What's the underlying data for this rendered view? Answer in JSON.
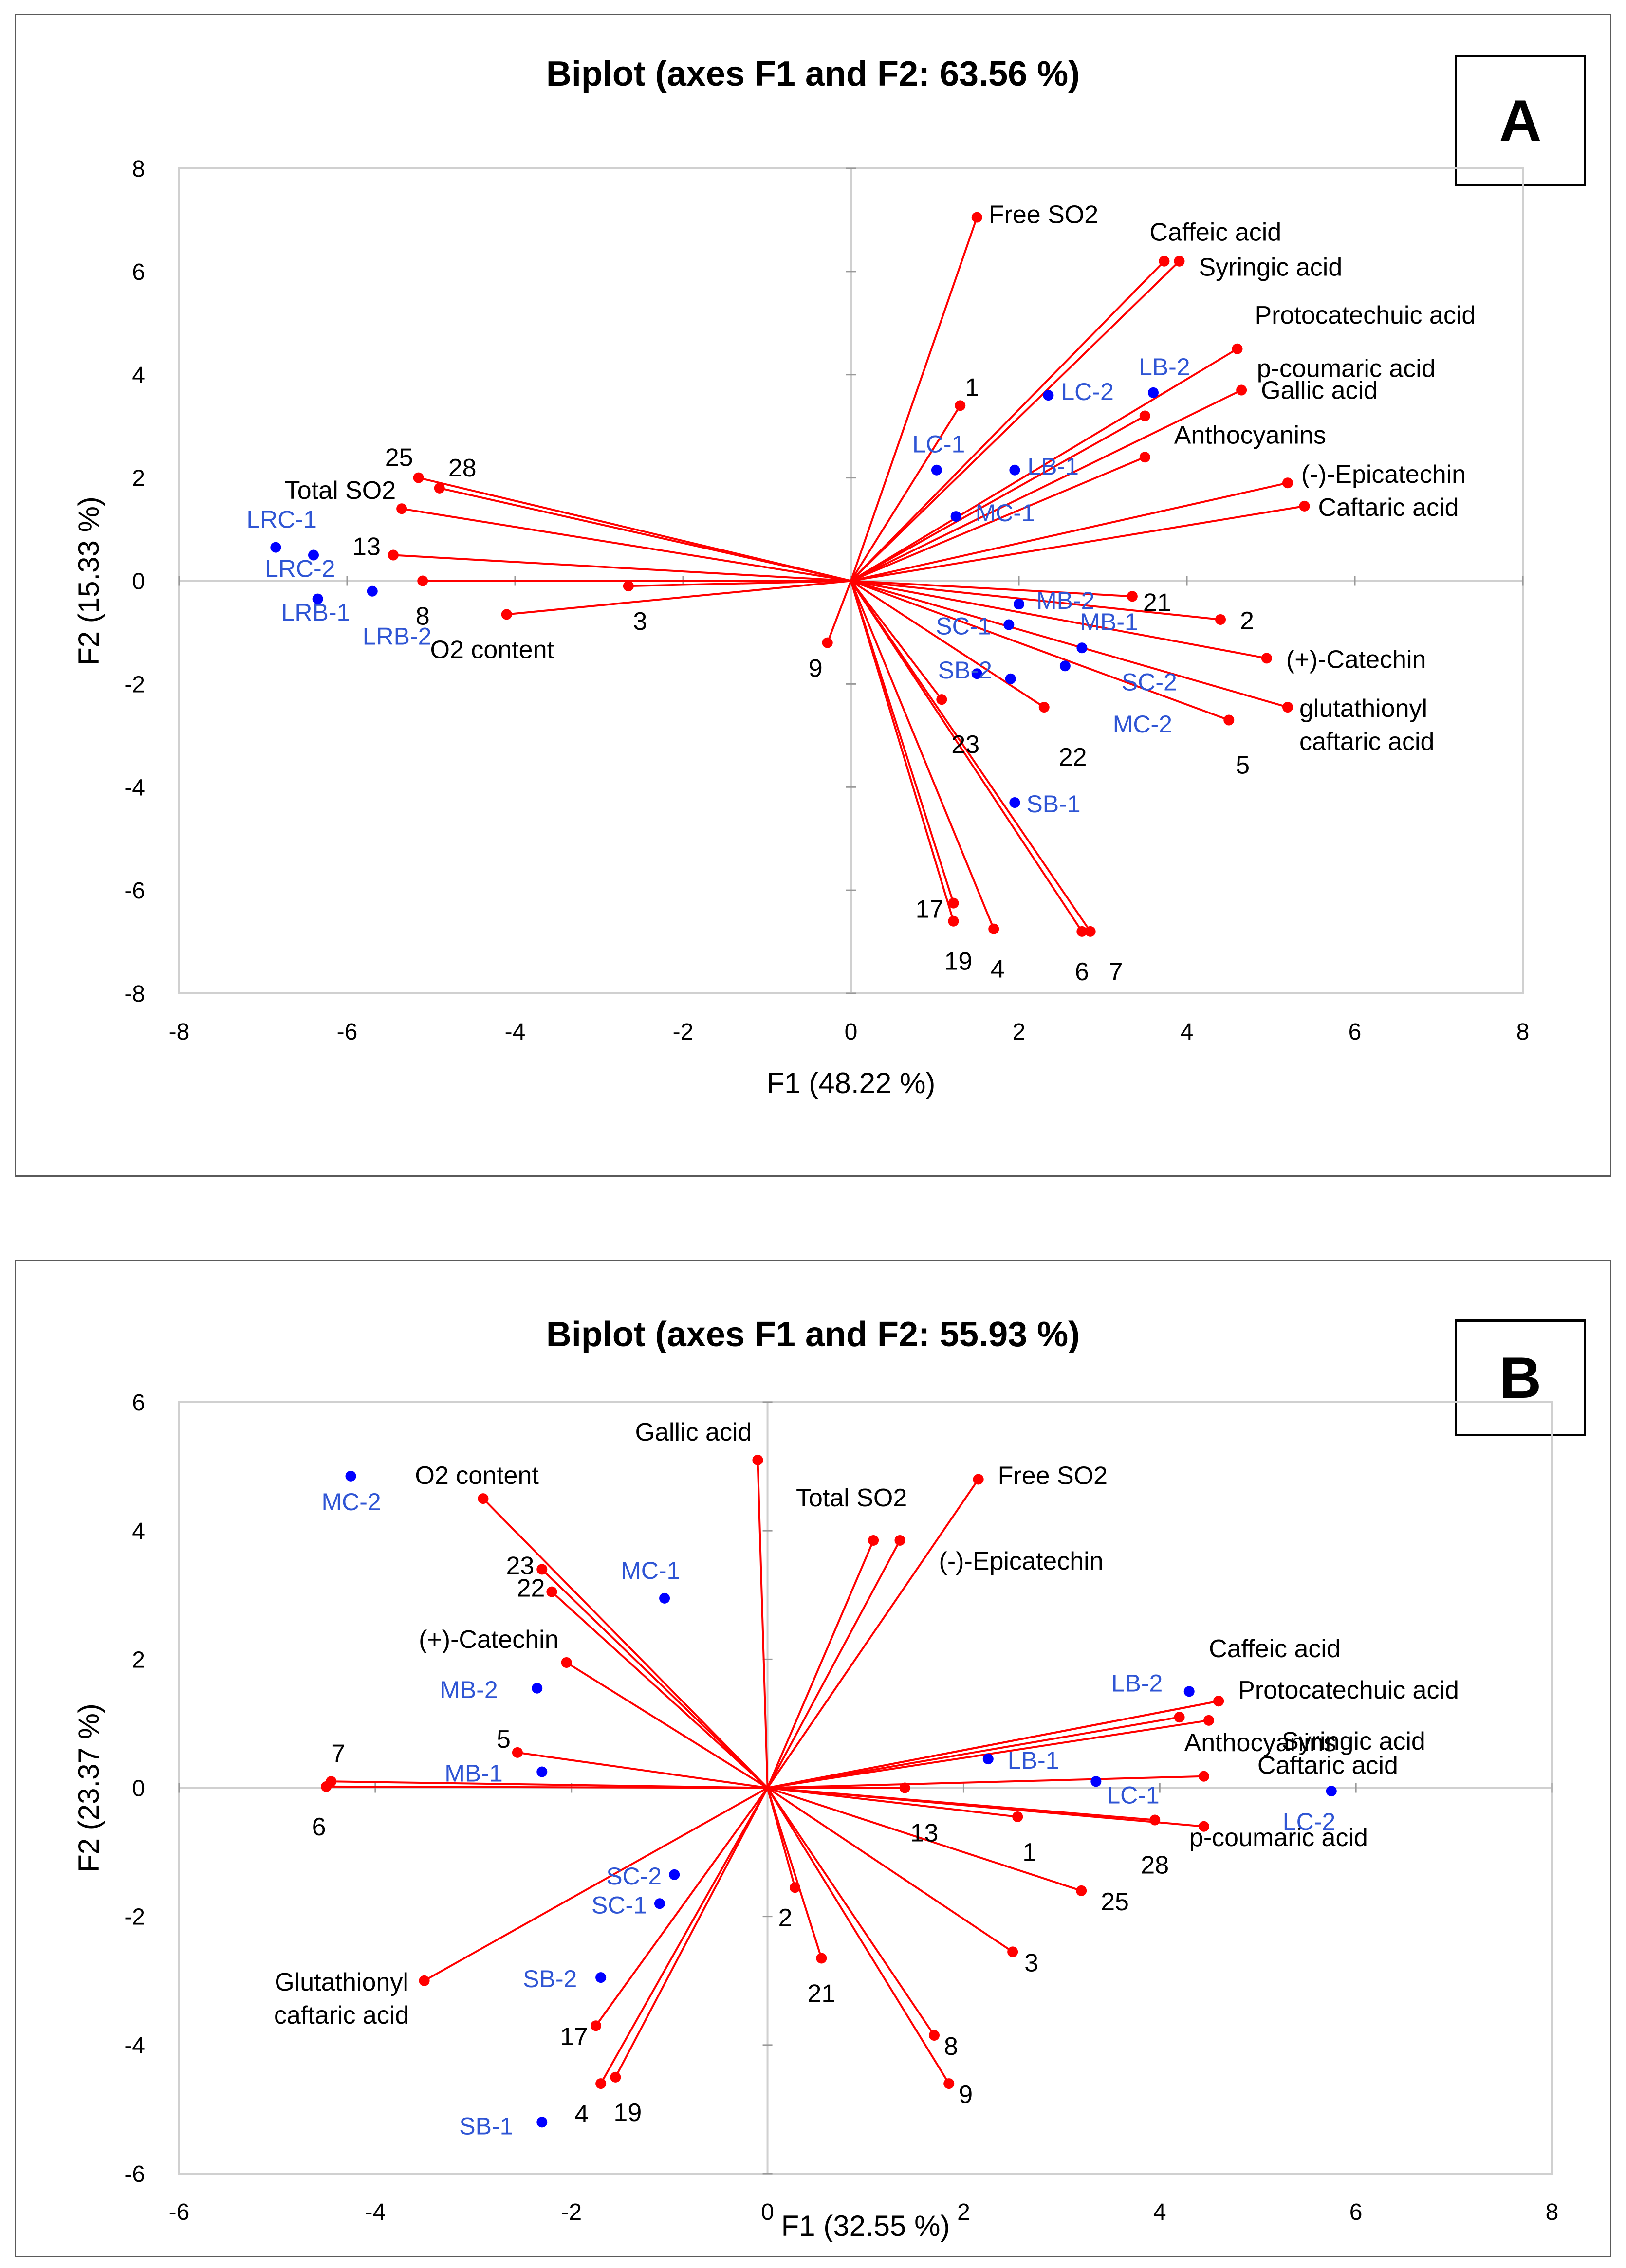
{
  "colors": {
    "variable": "#ff0000",
    "observation": "#0000ff",
    "axis": "#d0d0d0",
    "text": "#000000",
    "obs_text": "#2f55d4"
  },
  "chart_data": [
    {
      "type": "scatter",
      "panel_letter": "A",
      "title": "Biplot (axes F1 and F2: 63.56 %)",
      "xlabel": "F1 (48.22 %)",
      "ylabel": "F2 (15.33 %)",
      "xlim": [
        -8,
        8
      ],
      "ylim": [
        -8,
        8
      ],
      "xticks": [
        "-8",
        "-6",
        "-4",
        "-2",
        "0",
        "2",
        "4",
        "6",
        "8"
      ],
      "yticks": [
        "-8",
        "-6",
        "-4",
        "-2",
        "0",
        "2",
        "4",
        "6",
        "8"
      ],
      "variables": [
        {
          "label": "Free SO2",
          "x": 1.5,
          "y": 7.05,
          "anchor": "start"
        },
        {
          "label": "Caffeic acid",
          "x": 3.73,
          "y": 6.2,
          "anchor": "start"
        },
        {
          "label": "Syringic acid",
          "x": 3.91,
          "y": 6.2,
          "anchor": "start"
        },
        {
          "label": "Protocatechuic acid",
          "x": 4.6,
          "y": 4.5,
          "anchor": "start"
        },
        {
          "label": "p-coumaric acid",
          "x": 3.5,
          "y": 3.2,
          "anchor": "start"
        },
        {
          "label": "Gallic acid",
          "x": 4.65,
          "y": 3.7,
          "anchor": "start"
        },
        {
          "label": "Anthocyanins",
          "x": 3.5,
          "y": 2.4,
          "anchor": "start"
        },
        {
          "label": "(-)-Epicatechin",
          "x": 5.2,
          "y": 1.9,
          "anchor": "start"
        },
        {
          "label": "Caftaric acid",
          "x": 5.4,
          "y": 1.45,
          "anchor": "start"
        },
        {
          "label": "1",
          "x": 1.3,
          "y": 3.4,
          "anchor": "start"
        },
        {
          "label": "25",
          "x": -5.15,
          "y": 2.0,
          "anchor": "middle"
        },
        {
          "label": "28",
          "x": -4.9,
          "y": 1.8,
          "anchor": "start"
        },
        {
          "label": "Total SO2",
          "x": -5.35,
          "y": 1.4,
          "anchor": "end"
        },
        {
          "label": "13",
          "x": -5.45,
          "y": 0.5,
          "anchor": "end"
        },
        {
          "label": "8",
          "x": -5.1,
          "y": 0.0,
          "anchor": "middle"
        },
        {
          "label": "O2 content",
          "x": -4.1,
          "y": -0.65,
          "anchor": "middle"
        },
        {
          "label": "3",
          "x": -2.65,
          "y": -0.1,
          "anchor": "middle"
        },
        {
          "label": "9",
          "x": -0.28,
          "y": -1.2,
          "anchor": "end"
        },
        {
          "label": "21",
          "x": 3.35,
          "y": -0.3,
          "anchor": "start"
        },
        {
          "label": "2",
          "x": 4.4,
          "y": -0.75,
          "anchor": "start"
        },
        {
          "label": "(+)-Catechin",
          "x": 4.95,
          "y": -1.5,
          "anchor": "start"
        },
        {
          "label": "glutathionyl caftaric acid",
          "x": 5.2,
          "y": -2.45,
          "anchor": "start"
        },
        {
          "label": "5",
          "x": 4.5,
          "y": -2.7,
          "anchor": "start"
        },
        {
          "label": "22",
          "x": 2.3,
          "y": -2.45,
          "anchor": "start"
        },
        {
          "label": "23",
          "x": 1.08,
          "y": -2.3,
          "anchor": "start"
        },
        {
          "label": "17",
          "x": 1.22,
          "y": -6.25,
          "anchor": "end"
        },
        {
          "label": "19",
          "x": 1.22,
          "y": -6.6,
          "anchor": "middle"
        },
        {
          "label": "4",
          "x": 1.7,
          "y": -6.75,
          "anchor": "middle"
        },
        {
          "label": "6",
          "x": 2.75,
          "y": -6.8,
          "anchor": "middle"
        },
        {
          "label": "7",
          "x": 2.85,
          "y": -6.8,
          "anchor": "start"
        }
      ],
      "observations": [
        {
          "label": "LRC-1",
          "x": -6.85,
          "y": 0.65
        },
        {
          "label": "LRC-2",
          "x": -6.4,
          "y": 0.5
        },
        {
          "label": "LRB-1",
          "x": -6.35,
          "y": -0.35
        },
        {
          "label": "LRB-2",
          "x": -5.7,
          "y": -0.2
        },
        {
          "label": "LC-1",
          "x": 1.02,
          "y": 2.15
        },
        {
          "label": "LC-2",
          "x": 2.35,
          "y": 3.6
        },
        {
          "label": "LB-1",
          "x": 1.95,
          "y": 2.15
        },
        {
          "label": "LB-2",
          "x": 3.6,
          "y": 3.65
        },
        {
          "label": "MC-1",
          "x": 1.25,
          "y": 1.25
        },
        {
          "label": "MB-2",
          "x": 2.0,
          "y": -0.45
        },
        {
          "label": "MB-1",
          "x": 2.75,
          "y": -1.3
        },
        {
          "label": "SC-1",
          "x": 1.88,
          "y": -0.85
        },
        {
          "label": "SC-2",
          "x": 2.55,
          "y": -1.65
        },
        {
          "label": "SB-2",
          "x": 1.5,
          "y": -1.8
        },
        {
          "label": "MC-2",
          "x": 1.9,
          "y": -1.9
        },
        {
          "label": "SB-1",
          "x": 1.95,
          "y": -4.3
        }
      ]
    },
    {
      "type": "scatter",
      "panel_letter": "B",
      "title": "Biplot (axes F1 and F2: 55.93 %)",
      "xlabel": "F1 (32.55 %)",
      "ylabel": "F2 (23.37 %)",
      "xlim": [
        -6,
        8
      ],
      "ylim": [
        -6,
        6
      ],
      "xticks": [
        "-6",
        "-4",
        "-2",
        "0",
        "2",
        "4",
        "6",
        "8"
      ],
      "yticks": [
        "-6",
        "-4",
        "-2",
        "0",
        "2",
        "4",
        "6"
      ],
      "variables": [
        {
          "label": "Gallic acid",
          "x": -0.1,
          "y": 5.1,
          "anchor": "end"
        },
        {
          "label": "O2 content",
          "x": -2.9,
          "y": 4.5,
          "anchor": "start"
        },
        {
          "label": "Total SO2",
          "x": 1.08,
          "y": 3.85,
          "anchor": "middle"
        },
        {
          "label": "(-)-Epicatechin",
          "x": 1.35,
          "y": 3.85,
          "anchor": "start"
        },
        {
          "label": "Free SO2",
          "x": 2.15,
          "y": 4.8,
          "anchor": "start"
        },
        {
          "label": "23",
          "x": -2.3,
          "y": 3.4,
          "anchor": "end"
        },
        {
          "label": "22",
          "x": -2.2,
          "y": 3.05,
          "anchor": "end"
        },
        {
          "label": "(+)-Catechin",
          "x": -2.05,
          "y": 1.95,
          "anchor": "end"
        },
        {
          "label": "5",
          "x": -2.55,
          "y": 0.55,
          "anchor": "end"
        },
        {
          "label": "7",
          "x": -4.45,
          "y": 0.1,
          "anchor": "start"
        },
        {
          "label": "6",
          "x": -4.5,
          "y": 0.02,
          "anchor": "middle"
        },
        {
          "label": "Glutathionyl caftaric acid",
          "x": -3.5,
          "y": -3.0,
          "anchor": "middle"
        },
        {
          "label": "17",
          "x": -1.75,
          "y": -3.7,
          "anchor": "end"
        },
        {
          "label": "4",
          "x": -1.7,
          "y": -4.6,
          "anchor": "end"
        },
        {
          "label": "19",
          "x": -1.55,
          "y": -4.5,
          "anchor": "middle"
        },
        {
          "label": "2",
          "x": 0.28,
          "y": -1.55,
          "anchor": "middle"
        },
        {
          "label": "21",
          "x": 0.55,
          "y": -2.65,
          "anchor": "middle"
        },
        {
          "label": "3",
          "x": 2.5,
          "y": -2.55,
          "anchor": "start"
        },
        {
          "label": "8",
          "x": 1.7,
          "y": -3.85,
          "anchor": "start"
        },
        {
          "label": "9",
          "x": 1.85,
          "y": -4.6,
          "anchor": "start"
        },
        {
          "label": "25",
          "x": 3.2,
          "y": -1.6,
          "anchor": "start"
        },
        {
          "label": "13",
          "x": 1.4,
          "y": 0.0,
          "anchor": "middle"
        },
        {
          "label": "1",
          "x": 2.55,
          "y": -0.45,
          "anchor": "start"
        },
        {
          "label": "28",
          "x": 3.95,
          "y": -0.5,
          "anchor": "middle"
        },
        {
          "label": "p-coumaric acid",
          "x": 4.45,
          "y": -0.6,
          "anchor": "start"
        },
        {
          "label": "Caftaric acid",
          "x": 4.45,
          "y": 0.18,
          "anchor": "start"
        },
        {
          "label": "Anthocyanins",
          "x": 4.2,
          "y": 1.1,
          "anchor": "start"
        },
        {
          "label": "Syringic acid",
          "x": 4.5,
          "y": 1.05,
          "anchor": "start"
        },
        {
          "label": "Protocatechuic acid",
          "x": 4.6,
          "y": 1.35,
          "anchor": "start"
        },
        {
          "label": "Caffeic acid",
          "x": 4.6,
          "y": 1.35,
          "anchor": "start"
        }
      ],
      "observations": [
        {
          "label": "MC-2",
          "x": -4.25,
          "y": 4.85
        },
        {
          "label": "MC-1",
          "x": -1.05,
          "y": 2.95
        },
        {
          "label": "MB-2",
          "x": -2.35,
          "y": 1.55
        },
        {
          "label": "MB-1",
          "x": -2.3,
          "y": 0.25
        },
        {
          "label": "SC-2",
          "x": -0.95,
          "y": -1.35
        },
        {
          "label": "SC-1",
          "x": -1.1,
          "y": -1.8
        },
        {
          "label": "SB-2",
          "x": -1.7,
          "y": -2.95
        },
        {
          "label": "SB-1",
          "x": -2.3,
          "y": -5.2
        },
        {
          "label": "LB-2",
          "x": 4.3,
          "y": 1.5
        },
        {
          "label": "LB-1",
          "x": 2.25,
          "y": 0.45
        },
        {
          "label": "LC-1",
          "x": 3.35,
          "y": 0.1
        },
        {
          "label": "LC-2",
          "x": 5.75,
          "y": -0.05
        }
      ]
    }
  ]
}
